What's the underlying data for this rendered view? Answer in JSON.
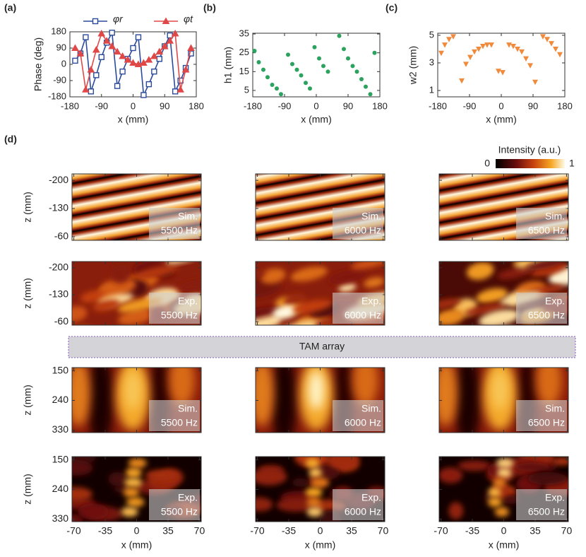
{
  "panel_labels": [
    "(a)",
    "(b)",
    "(c)",
    "(d)"
  ],
  "chart_data": [
    {
      "type": "line",
      "ylabel": "Phase (deg)",
      "xlabel": "x (mm)",
      "xlim": [
        -180,
        180
      ],
      "ylim": [
        -180,
        180
      ],
      "xticks": [
        -180,
        -90,
        0,
        90,
        180
      ],
      "yticks": [
        180,
        90,
        0,
        -90,
        -180
      ],
      "legend": "top",
      "x": [
        -165,
        -150,
        -135,
        -120,
        -105,
        -90,
        -75,
        -60,
        -45,
        -30,
        -15,
        0,
        15,
        30,
        45,
        60,
        75,
        90,
        105,
        120,
        135,
        150,
        165
      ],
      "series": [
        {
          "name": "φr",
          "color": "#2b4a9a",
          "marker": "square",
          "values": [
            20,
            60,
            150,
            -150,
            -60,
            40,
            120,
            175,
            -120,
            -40,
            30,
            90,
            150,
            -170,
            -110,
            -40,
            30,
            100,
            160,
            -150,
            -90,
            -20,
            60
          ]
        },
        {
          "name": "φt",
          "color": "#e04848",
          "marker": "triangle",
          "values": [
            90,
            60,
            -140,
            -30,
            80,
            170,
            130,
            100,
            70,
            45,
            25,
            8,
            0,
            8,
            25,
            45,
            70,
            100,
            130,
            170,
            -140,
            -30,
            90
          ]
        }
      ]
    },
    {
      "type": "scatter",
      "ylabel": "h1 (mm)",
      "xlabel": "x (mm)",
      "xlim": [
        -180,
        180
      ],
      "ylim": [
        1.6,
        35.4
      ],
      "xticks": [
        -180,
        -90,
        0,
        90,
        180
      ],
      "yticks": [
        5,
        15,
        25,
        35
      ],
      "color": "#2ca25f",
      "marker": "circle",
      "x": [
        -175,
        -163,
        -150,
        -138,
        -125,
        -112,
        -100,
        -80,
        -68,
        -55,
        -43,
        -30,
        -18,
        -5,
        8,
        20,
        33,
        65,
        78,
        90,
        103,
        115,
        128,
        140,
        153,
        165
      ],
      "values": [
        26,
        20,
        16,
        12,
        8,
        6,
        3,
        24,
        19,
        16,
        13,
        9,
        6,
        28,
        22,
        18,
        15,
        34,
        27,
        22,
        18,
        15,
        11,
        7,
        3,
        25
      ]
    },
    {
      "type": "scatter",
      "ylabel": "w2 (mm)",
      "xlabel": "x (mm)",
      "xlim": [
        -180,
        180
      ],
      "ylim": [
        0.54,
        5.15
      ],
      "xticks": [
        -180,
        -90,
        0,
        90,
        180
      ],
      "yticks": [
        1,
        3,
        5
      ],
      "color": "#f08a3c",
      "marker": "triangle-down",
      "x": [
        -170,
        -160,
        -148,
        -136,
        -112,
        -100,
        -88,
        -76,
        -64,
        -52,
        -40,
        -28,
        -8,
        4,
        22,
        34,
        46,
        58,
        70,
        82,
        96,
        118,
        130,
        142,
        154,
        166
      ],
      "values": [
        3.7,
        4.3,
        4.7,
        4.9,
        1.7,
        2.9,
        3.4,
        3.8,
        4.0,
        4.2,
        4.3,
        4.3,
        2.4,
        2.3,
        4.3,
        4.2,
        4.0,
        3.8,
        3.3,
        2.8,
        1.6,
        4.9,
        4.7,
        4.4,
        4.0,
        3.6
      ]
    },
    {
      "type": "heatmap",
      "colorbar_title": "Intensity (a.u.)",
      "colorbar_ticks": [
        0,
        1
      ],
      "divider": "TAM array",
      "xlabel": "x (mm)",
      "xlim": [
        -72,
        72
      ],
      "xticks": [
        -70,
        -35,
        0,
        35,
        70
      ],
      "y_inverted": true,
      "rows": [
        {
          "ylabel": "z (mm)",
          "ylim": [
            -216,
            -51
          ],
          "yticks": [
            -200,
            -130,
            -60
          ],
          "kind": "Sim.",
          "panels": [
            "5500 Hz",
            "6000 Hz",
            "6500 Hz"
          ]
        },
        {
          "ylabel": "z (mm)",
          "ylim": [
            -216,
            -51
          ],
          "yticks": [
            -200,
            -130,
            -60
          ],
          "kind": "Exp.",
          "panels": [
            "5500 Hz",
            "6000 Hz",
            "6500 Hz"
          ]
        },
        {
          "ylabel": "z (mm)",
          "ylim": [
            140,
            338
          ],
          "yticks": [
            150,
            240,
            330
          ],
          "kind": "Sim.",
          "panels": [
            "5500 Hz",
            "6000 Hz",
            "6500 Hz"
          ]
        },
        {
          "ylabel": "z (mm)",
          "ylim": [
            140,
            338
          ],
          "yticks": [
            150,
            240,
            330
          ],
          "kind": "Exp.",
          "panels": [
            "5500 Hz",
            "6000 Hz",
            "6500 Hz"
          ]
        }
      ]
    }
  ]
}
